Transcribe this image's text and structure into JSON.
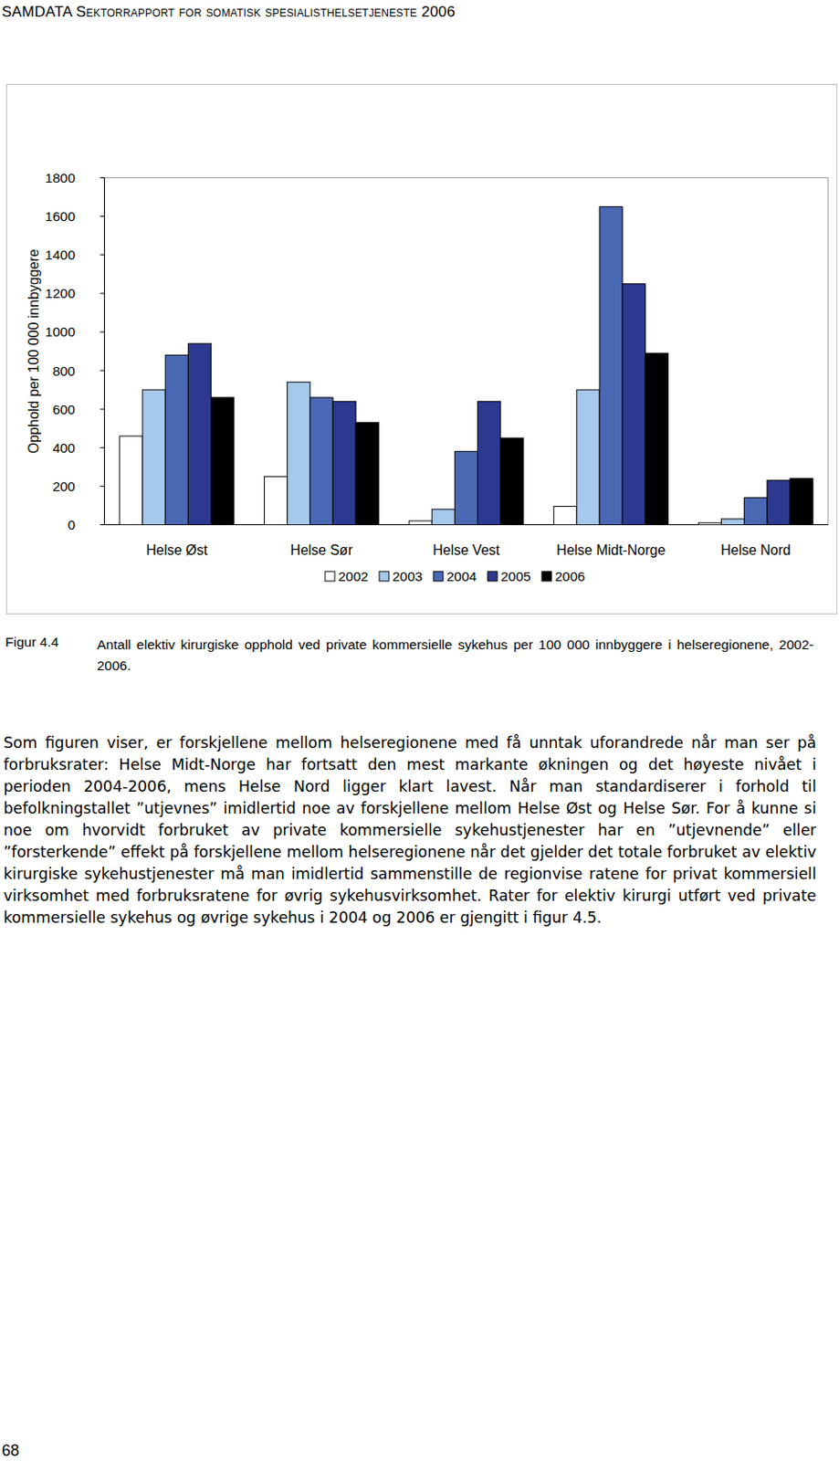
{
  "header": "SAMDATA Sektorrapport for somatisk spesialisthelsetjeneste 2006",
  "chart_data": {
    "type": "bar",
    "y_label": "Opphold per 100 000 innbyggere",
    "categories": [
      "Helse Øst",
      "Helse Sør",
      "Helse Vest",
      "Helse Midt-Norge",
      "Helse Nord"
    ],
    "series": [
      {
        "name": "2002",
        "color": "#ffffff",
        "values": [
          460,
          250,
          20,
          95,
          10
        ]
      },
      {
        "name": "2003",
        "color": "#a6c8ea",
        "values": [
          700,
          740,
          80,
          700,
          30
        ]
      },
      {
        "name": "2004",
        "color": "#4a68b3",
        "values": [
          880,
          660,
          380,
          1650,
          140
        ]
      },
      {
        "name": "2005",
        "color": "#2c3990",
        "values": [
          940,
          640,
          640,
          1250,
          230
        ]
      },
      {
        "name": "2006",
        "color": "#000000",
        "values": [
          660,
          530,
          450,
          890,
          240
        ]
      }
    ],
    "ylim": [
      0,
      1800
    ],
    "yticks": [
      0,
      200,
      400,
      600,
      800,
      1000,
      1200,
      1400,
      1600,
      1800
    ],
    "grid": false,
    "legend": "bottom"
  },
  "caption": {
    "label": "Figur 4.4",
    "text": "Antall elektiv kirurgiske opphold ved private kommersielle sykehus per 100 000 innbyggere i helse­regionene, 2002-2006."
  },
  "body": "Som figuren viser, er forskjellene mellom helseregionene med få unntak uforandrede når man ser på forbruksrater: Helse Midt-Norge har fortsatt den mest markante økningen og det høyeste nivået i perioden 2004-2006, mens Helse Nord ligger klart lavest. Når man standardiserer i forhold til befolkningstallet ”utjevnes” imidlertid noe av forskjellene mellom Helse Øst og Helse Sør. For å kunne si noe om hvorvidt forbruket av private kommersielle sykehustjenester har en ”utjevnende” eller ”forsterkende” effekt på forskjellene mellom helseregionene når det gjelder det totale forbruket av elektiv kirurgiske sykehustjenester må man imidlertid sammenstille de regionvise ratene for privat kommersiell virksomhet med forbruksratene for øvrig sykehusvirksomhet. Rater for elektiv kirurgi utført ved private kommersielle sykehus og øvrige sykehus i 2004 og 2006 er gjengitt i figur 4.5.",
  "page_number": "68"
}
